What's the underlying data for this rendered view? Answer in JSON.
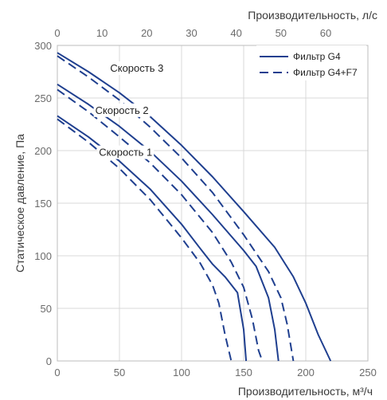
{
  "chart_data": {
    "type": "line",
    "x_bottom": {
      "label": "Производительность, м³/ч",
      "range": [
        0,
        250
      ],
      "ticks": [
        0,
        50,
        100,
        150,
        200,
        250
      ]
    },
    "x_top": {
      "label": "Производительность, л/с",
      "range": [
        0,
        69.44
      ],
      "ticks": [
        0,
        10,
        20,
        30,
        40,
        50,
        60
      ]
    },
    "y": {
      "label": "Статическое давление, Па",
      "range": [
        0,
        300
      ],
      "ticks": [
        0,
        50,
        100,
        150,
        200,
        250,
        300
      ]
    },
    "grid": true,
    "legend": {
      "position": "top-right",
      "entries": [
        {
          "label": "Фильтр G4",
          "style": "solid"
        },
        {
          "label": "Фильтр G4+F7",
          "style": "dashed"
        }
      ]
    },
    "annotations": [
      {
        "text": "Скорость 3",
        "at": [
          64,
          278
        ]
      },
      {
        "text": "Скорость 2",
        "at": [
          52,
          238
        ]
      },
      {
        "text": "Скорость 1",
        "at": [
          55,
          198
        ]
      }
    ],
    "line_color": "#1f3f8f",
    "series": [
      {
        "group": "Скорость 3",
        "filter": "Фильтр G4",
        "style": "solid",
        "points": [
          [
            0,
            293
          ],
          [
            25,
            275
          ],
          [
            50,
            255
          ],
          [
            75,
            232
          ],
          [
            100,
            205
          ],
          [
            125,
            175
          ],
          [
            150,
            142
          ],
          [
            175,
            108
          ],
          [
            190,
            80
          ],
          [
            200,
            55
          ],
          [
            210,
            25
          ],
          [
            220,
            0
          ]
        ]
      },
      {
        "group": "Скорость 3",
        "filter": "Фильтр G4+F7",
        "style": "dashed",
        "points": [
          [
            0,
            290
          ],
          [
            25,
            270
          ],
          [
            50,
            248
          ],
          [
            75,
            222
          ],
          [
            100,
            193
          ],
          [
            125,
            160
          ],
          [
            150,
            120
          ],
          [
            170,
            85
          ],
          [
            180,
            60
          ],
          [
            185,
            35
          ],
          [
            190,
            0
          ]
        ]
      },
      {
        "group": "Скорость 2",
        "filter": "Фильтр G4",
        "style": "solid",
        "points": [
          [
            0,
            263
          ],
          [
            25,
            244
          ],
          [
            50,
            223
          ],
          [
            75,
            199
          ],
          [
            100,
            171
          ],
          [
            125,
            139
          ],
          [
            150,
            105
          ],
          [
            160,
            90
          ],
          [
            170,
            60
          ],
          [
            175,
            30
          ],
          [
            178,
            0
          ]
        ]
      },
      {
        "group": "Скорость 2",
        "filter": "Фильтр G4+F7",
        "style": "dashed",
        "points": [
          [
            0,
            258
          ],
          [
            25,
            237
          ],
          [
            50,
            213
          ],
          [
            75,
            188
          ],
          [
            100,
            158
          ],
          [
            125,
            122
          ],
          [
            140,
            94
          ],
          [
            150,
            70
          ],
          [
            157,
            40
          ],
          [
            162,
            10
          ],
          [
            165,
            0
          ]
        ]
      },
      {
        "group": "Скорость 1",
        "filter": "Фильтр G4",
        "style": "solid",
        "points": [
          [
            0,
            233
          ],
          [
            25,
            213
          ],
          [
            50,
            190
          ],
          [
            75,
            163
          ],
          [
            100,
            130
          ],
          [
            115,
            107
          ],
          [
            125,
            92
          ],
          [
            135,
            80
          ],
          [
            145,
            65
          ],
          [
            150,
            30
          ],
          [
            152,
            0
          ]
        ]
      },
      {
        "group": "Скорость 1",
        "filter": "Фильтр G4+F7",
        "style": "dashed",
        "points": [
          [
            0,
            230
          ],
          [
            25,
            208
          ],
          [
            50,
            183
          ],
          [
            75,
            153
          ],
          [
            100,
            117
          ],
          [
            115,
            93
          ],
          [
            125,
            72
          ],
          [
            130,
            55
          ],
          [
            135,
            25
          ],
          [
            140,
            0
          ]
        ]
      }
    ]
  }
}
